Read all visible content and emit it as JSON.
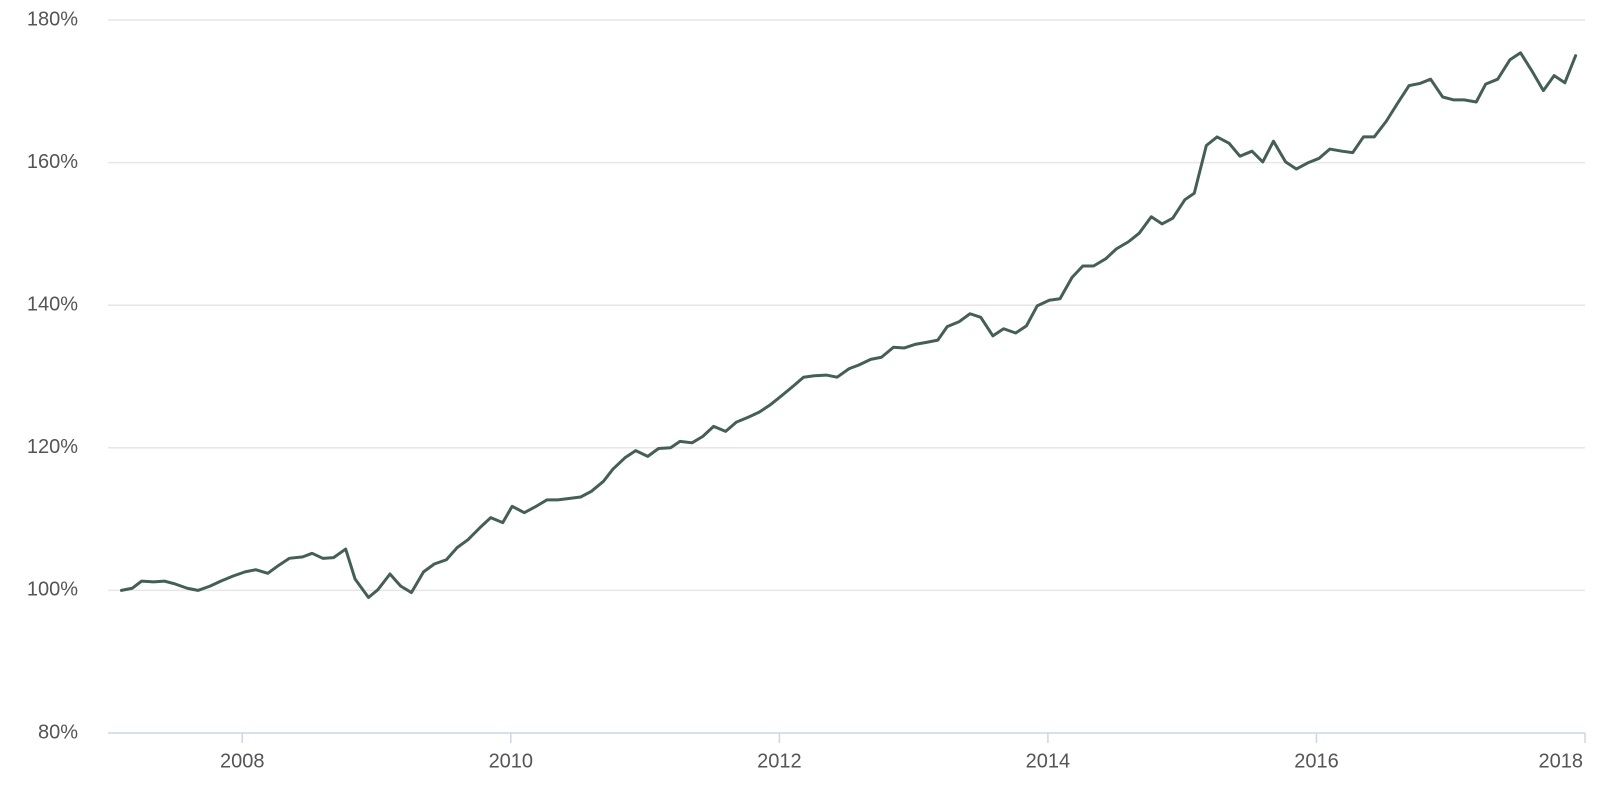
{
  "chart_data": {
    "type": "line",
    "x": [
      2007.1,
      2007.18,
      2007.25,
      2007.34,
      2007.42,
      2007.5,
      2007.59,
      2007.67,
      2007.76,
      2007.84,
      2007.93,
      2008.02,
      2008.1,
      2008.19,
      2008.27,
      2008.35,
      2008.45,
      2008.52,
      2008.6,
      2008.68,
      2008.77,
      2008.84,
      2008.94,
      2009.01,
      2009.1,
      2009.18,
      2009.26,
      2009.35,
      2009.43,
      2009.52,
      2009.6,
      2009.68,
      2009.77,
      2009.85,
      2009.94,
      2010.01,
      2010.1,
      2010.18,
      2010.27,
      2010.35,
      2010.44,
      2010.52,
      2010.6,
      2010.69,
      2010.76,
      2010.85,
      2010.93,
      2011.02,
      2011.1,
      2011.19,
      2011.26,
      2011.35,
      2011.43,
      2011.51,
      2011.6,
      2011.68,
      2011.77,
      2011.85,
      2011.93,
      2012.01,
      2012.1,
      2012.18,
      2012.26,
      2012.35,
      2012.43,
      2012.52,
      2012.59,
      2012.68,
      2012.76,
      2012.85,
      2012.93,
      2013.01,
      2013.1,
      2013.18,
      2013.25,
      2013.34,
      2013.42,
      2013.5,
      2013.59,
      2013.67,
      2013.76,
      2013.84,
      2013.92,
      2014.01,
      2014.09,
      2014.18,
      2014.26,
      2014.34,
      2014.43,
      2014.51,
      2014.6,
      2014.68,
      2014.77,
      2014.85,
      2014.93,
      2015.02,
      2015.09,
      2015.18,
      2015.26,
      2015.35,
      2015.43,
      2015.52,
      2015.6,
      2015.68,
      2015.77,
      2015.85,
      2015.94,
      2016.02,
      2016.1,
      2016.19,
      2016.27,
      2016.35,
      2016.43,
      2016.52,
      2016.6,
      2016.69,
      2016.77,
      2016.85,
      2016.94,
      2017.02,
      2017.1,
      2017.19,
      2017.26,
      2017.35,
      2017.44,
      2017.52,
      2017.6,
      2017.69,
      2017.77,
      2017.85,
      2017.93
    ],
    "series": [
      {
        "color": "#455f56",
        "values": [
          100.0,
          100.3,
          101.3,
          101.2,
          101.3,
          100.9,
          100.3,
          100.0,
          100.6,
          101.3,
          102.0,
          102.6,
          102.9,
          102.4,
          103.5,
          104.5,
          104.7,
          105.2,
          104.5,
          104.6,
          105.8,
          101.6,
          99.0,
          100.1,
          102.3,
          100.6,
          99.7,
          102.6,
          103.7,
          104.3,
          106.0,
          107.1,
          108.8,
          110.2,
          109.5,
          111.8,
          110.9,
          111.7,
          112.7,
          112.7,
          112.9,
          113.1,
          113.9,
          115.3,
          117.0,
          118.6,
          119.6,
          118.8,
          119.9,
          120.0,
          120.9,
          120.7,
          121.6,
          123.0,
          122.3,
          123.6,
          124.3,
          125.0,
          126.0,
          127.2,
          128.6,
          129.9,
          130.1,
          130.2,
          129.9,
          131.1,
          131.6,
          132.4,
          132.7,
          134.1,
          134.0,
          134.5,
          134.8,
          135.1,
          137.0,
          137.7,
          138.8,
          138.3,
          135.7,
          136.7,
          136.1,
          137.1,
          139.9,
          140.7,
          140.9,
          143.9,
          145.5,
          145.5,
          146.5,
          147.9,
          148.9,
          150.1,
          152.4,
          151.4,
          152.2,
          154.8,
          155.7,
          162.4,
          163.6,
          162.7,
          160.9,
          161.6,
          160.1,
          163.0,
          160.1,
          159.1,
          160.0,
          160.6,
          161.9,
          161.6,
          161.4,
          163.6,
          163.6,
          165.8,
          168.2,
          170.8,
          171.1,
          171.7,
          169.2,
          168.8,
          168.8,
          168.5,
          171.0,
          171.7,
          174.4,
          175.4,
          173.0,
          170.1,
          172.2,
          171.2,
          175.0
        ]
      }
    ],
    "xlim": [
      2007,
      2018
    ],
    "xticks": [
      2008,
      2010,
      2012,
      2014,
      2016,
      2018
    ],
    "ylim": [
      80,
      180
    ],
    "yticks": [
      {
        "value": 80,
        "label": "80%"
      },
      {
        "value": 100,
        "label": "100%"
      },
      {
        "value": 120,
        "label": "120%"
      },
      {
        "value": 140,
        "label": "140%"
      },
      {
        "value": 160,
        "label": "160%"
      },
      {
        "value": 180,
        "label": "180%"
      }
    ],
    "grid": true
  }
}
